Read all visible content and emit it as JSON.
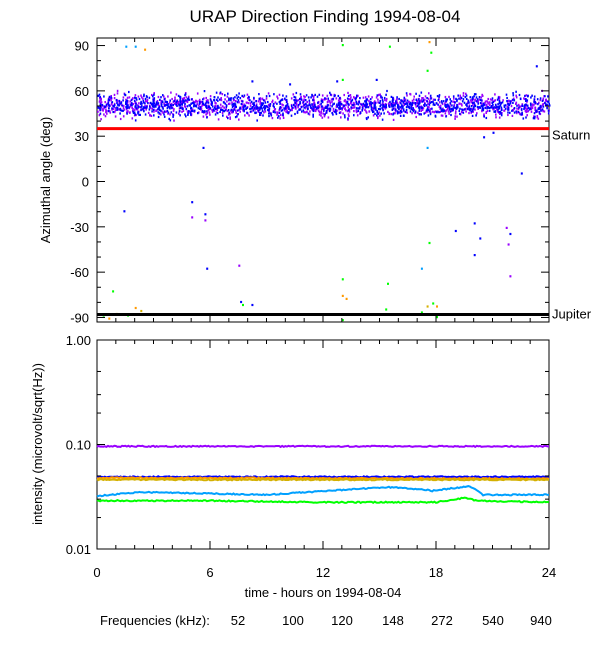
{
  "title": "URAP Direction Finding  1994-08-04",
  "colors": {
    "52": "#ff0000",
    "100": "#ff9900",
    "120": "#d4b000",
    "148": "#00ff00",
    "272": "#00a0ff",
    "540": "#0000ff",
    "940": "#9900ff",
    "saturn_line": "#ff0000",
    "jupiter_line": "#000000"
  },
  "legend": {
    "prefix": "Frequencies (kHz):",
    "entries": [
      "52",
      "100",
      "120",
      "148",
      "272",
      "540",
      "940"
    ]
  },
  "chart_data": [
    {
      "type": "scatter",
      "title": "URAP Direction Finding  1994-08-04",
      "xlabel": "",
      "ylabel": "Azimuthal angle (deg)",
      "xlim": [
        0,
        24
      ],
      "ylim": [
        -93,
        95
      ],
      "yticks": [
        90,
        60,
        30,
        0,
        -30,
        -60,
        -90
      ],
      "grid": false,
      "reference_lines": [
        {
          "label": "Saturn",
          "y": 35,
          "color": "#ff0000"
        },
        {
          "label": "Jupiter",
          "y": -88,
          "color": "#000000"
        }
      ],
      "series": [
        {
          "name": "940",
          "band": {
            "x_range": [
              0,
              24
            ],
            "y_range": [
              40,
              62
            ],
            "median": 50
          }
        },
        {
          "name": "540",
          "band": {
            "x_range": [
              0,
              24
            ],
            "y_range": [
              40,
              62
            ],
            "median": 50
          }
        }
      ],
      "outliers": [
        {
          "series": "272",
          "x": 1.5,
          "y": 90
        },
        {
          "series": "272",
          "x": 2.0,
          "y": 90
        },
        {
          "series": "100",
          "x": 2.5,
          "y": 88
        },
        {
          "series": "148",
          "x": 13.0,
          "y": 91
        },
        {
          "series": "148",
          "x": 15.5,
          "y": 90
        },
        {
          "series": "100",
          "x": 17.6,
          "y": 93
        },
        {
          "series": "148",
          "x": 17.7,
          "y": 86
        },
        {
          "series": "148",
          "x": 17.5,
          "y": 74
        },
        {
          "series": "540",
          "x": 23.3,
          "y": 77
        },
        {
          "series": "148",
          "x": 13.0,
          "y": 68
        },
        {
          "series": "540",
          "x": 8.2,
          "y": 67
        },
        {
          "series": "540",
          "x": 10.2,
          "y": 65
        },
        {
          "series": "540",
          "x": 12.7,
          "y": 67
        },
        {
          "series": "540",
          "x": 14.8,
          "y": 68
        },
        {
          "series": "540",
          "x": 20.5,
          "y": 30
        },
        {
          "series": "540",
          "x": 21.0,
          "y": 33
        },
        {
          "series": "272",
          "x": 17.5,
          "y": 23
        },
        {
          "series": "540",
          "x": 5.6,
          "y": 23
        },
        {
          "series": "540",
          "x": 22.5,
          "y": 6
        },
        {
          "series": "540",
          "x": 1.4,
          "y": -19
        },
        {
          "series": "540",
          "x": 5.0,
          "y": -13
        },
        {
          "series": "940",
          "x": 5.0,
          "y": -23
        },
        {
          "series": "540",
          "x": 5.7,
          "y": -21
        },
        {
          "series": "940",
          "x": 5.7,
          "y": -25
        },
        {
          "series": "540",
          "x": 19.0,
          "y": -32
        },
        {
          "series": "540",
          "x": 20.0,
          "y": -27
        },
        {
          "series": "540",
          "x": 20.3,
          "y": -37
        },
        {
          "series": "540",
          "x": 20.0,
          "y": -48
        },
        {
          "series": "940",
          "x": 21.7,
          "y": -30
        },
        {
          "series": "540",
          "x": 21.9,
          "y": -34
        },
        {
          "series": "940",
          "x": 21.8,
          "y": -41
        },
        {
          "series": "940",
          "x": 21.9,
          "y": -62
        },
        {
          "series": "148",
          "x": 17.6,
          "y": -40
        },
        {
          "series": "540",
          "x": 5.8,
          "y": -57
        },
        {
          "series": "940",
          "x": 7.5,
          "y": -55
        },
        {
          "series": "272",
          "x": 17.2,
          "y": -57
        },
        {
          "series": "148",
          "x": 13.0,
          "y": -64
        },
        {
          "series": "148",
          "x": 15.4,
          "y": -67
        },
        {
          "series": "148",
          "x": 0.8,
          "y": -72
        },
        {
          "series": "100",
          "x": 13.0,
          "y": -75
        },
        {
          "series": "100",
          "x": 13.2,
          "y": -77
        },
        {
          "series": "540",
          "x": 7.6,
          "y": -79
        },
        {
          "series": "148",
          "x": 7.7,
          "y": -81
        },
        {
          "series": "540",
          "x": 8.2,
          "y": -81
        },
        {
          "series": "100",
          "x": 2.0,
          "y": -83
        },
        {
          "series": "120",
          "x": 2.3,
          "y": -85
        },
        {
          "series": "120",
          "x": 17.5,
          "y": -82
        },
        {
          "series": "148",
          "x": 17.8,
          "y": -80
        },
        {
          "series": "100",
          "x": 18.0,
          "y": -82
        },
        {
          "series": "148",
          "x": 15.3,
          "y": -84
        },
        {
          "series": "148",
          "x": 0.3,
          "y": -88
        },
        {
          "series": "100",
          "x": 0.6,
          "y": -90
        },
        {
          "series": "120",
          "x": 1.0,
          "y": -87
        },
        {
          "series": "148",
          "x": 1.6,
          "y": -88
        },
        {
          "series": "148",
          "x": 13.0,
          "y": -91
        },
        {
          "series": "148",
          "x": 17.2,
          "y": -86
        },
        {
          "series": "148",
          "x": 18.0,
          "y": -89
        }
      ]
    },
    {
      "type": "line",
      "xlabel": "time - hours on 1994-08-04",
      "ylabel": "intensity (microvolt/sqrt(Hz))",
      "xlim": [
        0,
        24
      ],
      "ylim": [
        0.01,
        1.0
      ],
      "yscale": "log",
      "xticks": [
        0,
        6,
        12,
        18,
        24
      ],
      "yticks": [
        "0.01",
        "0.10",
        "1.00"
      ],
      "grid": false,
      "series": [
        {
          "name": "940",
          "x": [
            0,
            24
          ],
          "y": [
            0.096,
            0.096
          ]
        },
        {
          "name": "540",
          "x": [
            0,
            24
          ],
          "y": [
            0.049,
            0.049
          ]
        },
        {
          "name": "100",
          "x": [
            0,
            24
          ],
          "y": [
            0.048,
            0.047
          ]
        },
        {
          "name": "120",
          "x": [
            0,
            24
          ],
          "y": [
            0.046,
            0.046
          ]
        },
        {
          "name": "272",
          "x": [
            0,
            1.5,
            2.5,
            9,
            15.5,
            17.4,
            17.8,
            19.8,
            20.5,
            24
          ],
          "y": [
            0.032,
            0.034,
            0.035,
            0.033,
            0.039,
            0.037,
            0.036,
            0.04,
            0.033,
            0.033
          ]
        },
        {
          "name": "148",
          "x": [
            0,
            6,
            12,
            18,
            19.6,
            20.1,
            24
          ],
          "y": [
            0.029,
            0.029,
            0.028,
            0.028,
            0.031,
            0.029,
            0.028
          ]
        }
      ]
    }
  ]
}
